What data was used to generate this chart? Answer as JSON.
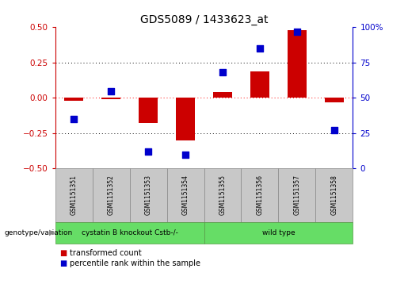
{
  "title": "GDS5089 / 1433623_at",
  "samples": [
    "GSM1151351",
    "GSM1151352",
    "GSM1151353",
    "GSM1151354",
    "GSM1151355",
    "GSM1151356",
    "GSM1151357",
    "GSM1151358"
  ],
  "red_values": [
    -0.02,
    -0.01,
    -0.18,
    -0.3,
    0.04,
    0.19,
    0.48,
    -0.03
  ],
  "blue_values": [
    35,
    55,
    12,
    10,
    68,
    85,
    97,
    27
  ],
  "ylim_left": [
    -0.5,
    0.5
  ],
  "ylim_right": [
    0,
    100
  ],
  "yticks_left": [
    -0.5,
    -0.25,
    0.0,
    0.25,
    0.5
  ],
  "yticks_right": [
    0,
    25,
    50,
    75,
    100
  ],
  "red_color": "#CC0000",
  "blue_color": "#0000CC",
  "group1_label": "cystatin B knockout Cstb-/-",
  "group2_label": "wild type",
  "group1_count": 4,
  "group2_count": 4,
  "group_color": "#66DD66",
  "cell_color": "#C8C8C8",
  "genotype_label": "genotype/variation",
  "legend_red": "transformed count",
  "legend_blue": "percentile rank within the sample",
  "bar_width": 0.5,
  "blue_size": 35,
  "background_color": "#ffffff"
}
